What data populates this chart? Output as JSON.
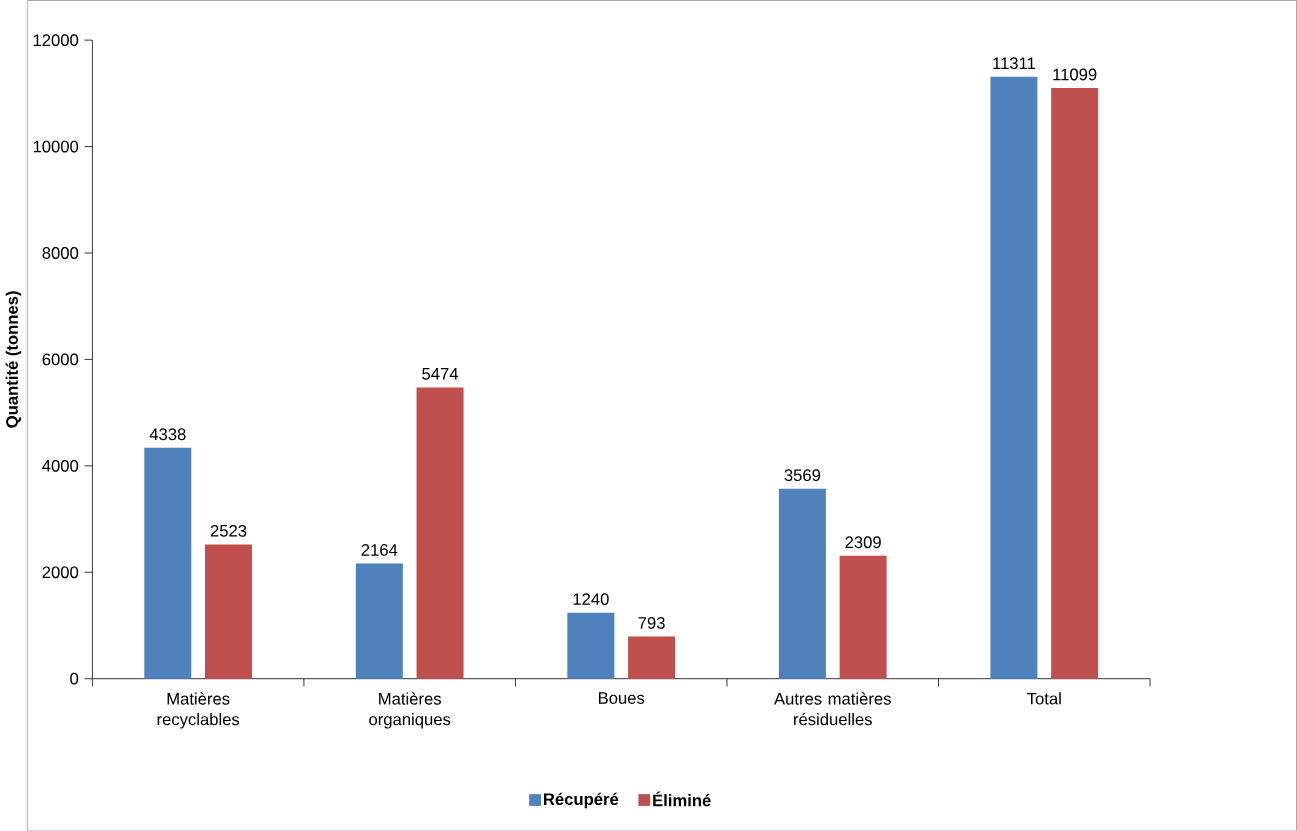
{
  "chart_data": {
    "type": "bar",
    "ylabel": "Quantité (tonnes)",
    "categories": [
      "Matières recyclables",
      "Matières organiques",
      "Boues",
      "Autres matières résiduelles",
      "Total"
    ],
    "series": [
      {
        "name": "Récupéré",
        "color": "#4f81bd",
        "values": [
          4338,
          2164,
          1240,
          3569,
          11311
        ]
      },
      {
        "name": "Éliminé",
        "color": "#c0504d",
        "values": [
          2523,
          5474,
          793,
          2309,
          11099
        ]
      }
    ],
    "ylim": [
      0,
      12000
    ],
    "yticks": [
      0,
      2000,
      4000,
      6000,
      8000,
      10000,
      12000
    ],
    "data_labels": true,
    "grid": false,
    "legend": "bottom"
  }
}
